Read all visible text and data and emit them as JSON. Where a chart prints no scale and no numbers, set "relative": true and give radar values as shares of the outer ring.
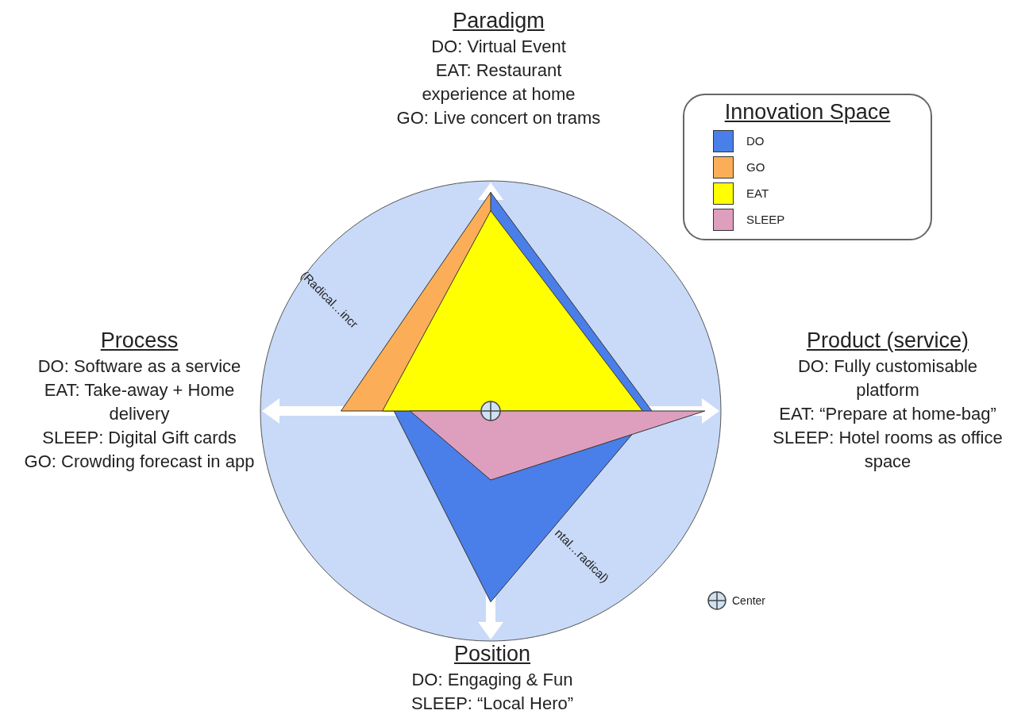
{
  "chart_data": {
    "type": "radar",
    "relative": true,
    "categories": [
      "Paradigm",
      "Product (service)",
      "Position",
      "Process"
    ],
    "series": [
      {
        "name": "DO",
        "color": "#4a7fea",
        "values": [
          0.95,
          0.7,
          0.83,
          0.42
        ]
      },
      {
        "name": "GO",
        "color": "#fbae57",
        "values": [
          0.95,
          null,
          0,
          0.65
        ]
      },
      {
        "name": "EAT",
        "color": "#ffff00",
        "values": [
          0.87,
          0.66,
          0,
          0.47
        ]
      },
      {
        "name": "SLEEP",
        "color": "#dd9fbd",
        "values": [
          0,
          0.93,
          0.3,
          0.35
        ]
      }
    ],
    "legend": "top right",
    "legend_title": "Innovation Space",
    "annotations": [
      {
        "text": "DO: Virtual Event",
        "x": "Paradigm"
      },
      {
        "text": "EAT: Restaurant experience at home",
        "x": "Paradigm"
      },
      {
        "text": "GO: Live concert on trams",
        "x": "Paradigm"
      },
      {
        "text": "DO: Fully customisable platform",
        "x": "Product (service)"
      },
      {
        "text": "EAT: “Prepare at home-bag”",
        "x": "Product (service)"
      },
      {
        "text": "SLEEP: Hotel rooms as office space",
        "x": "Product (service)"
      },
      {
        "text": "DO: Engaging & Fun",
        "x": "Position"
      },
      {
        "text": "SLEEP: “Local Hero”",
        "x": "Position"
      },
      {
        "text": "DO: Software as a service",
        "x": "Process"
      },
      {
        "text": "EAT: Take-away + Home delivery",
        "x": "Process"
      },
      {
        "text": "SLEEP: Digital Gift cards",
        "x": "Process"
      },
      {
        "text": "GO: Crowding forecast in app",
        "x": "Process"
      },
      "(Radical…incr",
      "ntal…radical)",
      "Center"
    ]
  }
}
